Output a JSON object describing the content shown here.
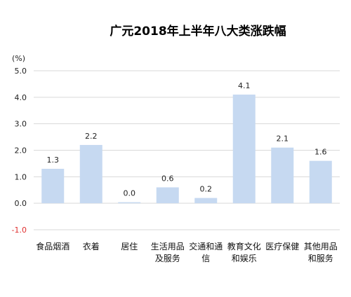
{
  "chart_data": {
    "type": "bar",
    "title": "广元2018年上半年八大类涨跌幅",
    "ylabel": "(%)",
    "xlabel": "",
    "ylim": [
      -1.0,
      5.0
    ],
    "yticks": [
      "-1.0",
      "0.0",
      "1.0",
      "2.0",
      "3.0",
      "4.0",
      "5.0"
    ],
    "grid": true,
    "bar_color": "#c6d9f1",
    "negative_tick_color": "#e03030",
    "categories": [
      [
        "食品烟酒"
      ],
      [
        "衣着"
      ],
      [
        "居住"
      ],
      [
        "生活用品",
        "及服务"
      ],
      [
        "交通和通",
        "信"
      ],
      [
        "教育文化",
        "和娱乐"
      ],
      [
        "医疗保健"
      ],
      [
        "其他用品",
        "和服务"
      ]
    ],
    "values": [
      1.3,
      2.2,
      0.0,
      0.6,
      0.2,
      4.1,
      2.1,
      1.6
    ],
    "data_labels": [
      "1.3",
      "2.2",
      "0.0",
      "0.6",
      "0.2",
      "4.1",
      "2.1",
      "1.6"
    ]
  }
}
